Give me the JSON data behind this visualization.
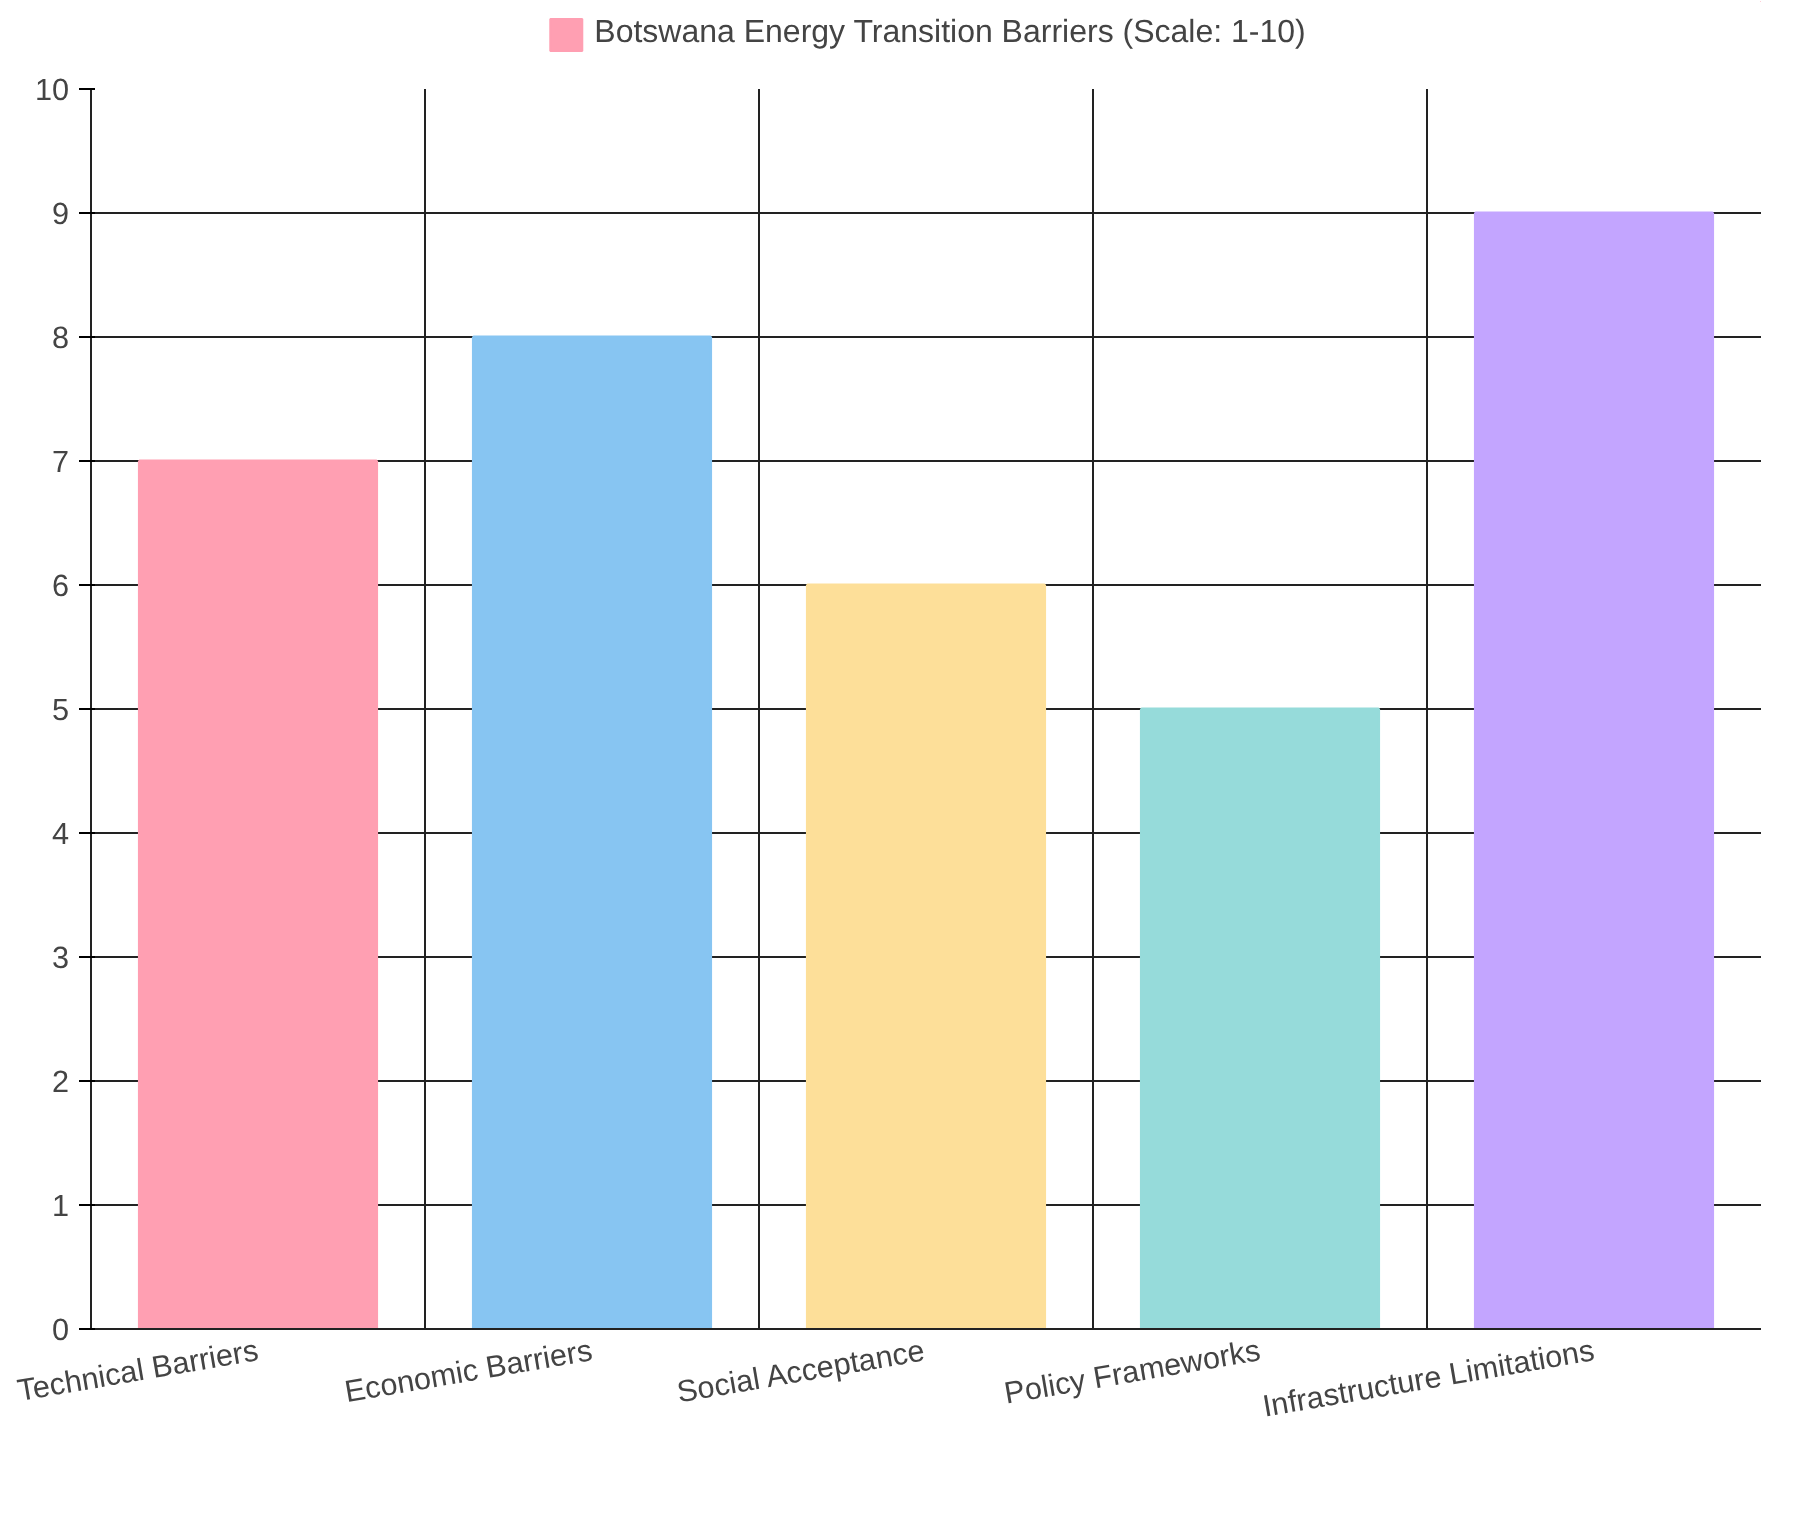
{
  "chart_data": {
    "type": "bar",
    "categories": [
      "Technical Barriers",
      "Economic Barriers",
      "Social Acceptance",
      "Policy Frameworks",
      "Infrastructure Limitations"
    ],
    "series": [
      {
        "name": "Botswana Energy Transition Barriers (Scale: 1-10)",
        "color": "#ff9fb2",
        "colors": [
          "#ff9fb2",
          "#87c5f2",
          "#fddf99",
          "#96dbda",
          "#c3a5ff"
        ],
        "values": [
          7,
          8,
          6,
          5,
          9
        ]
      }
    ],
    "ylim": [
      0,
      10
    ],
    "yticks": [
      0,
      1,
      2,
      3,
      4,
      5,
      6,
      7,
      8,
      9,
      10
    ],
    "grid": true,
    "legend": "top"
  }
}
